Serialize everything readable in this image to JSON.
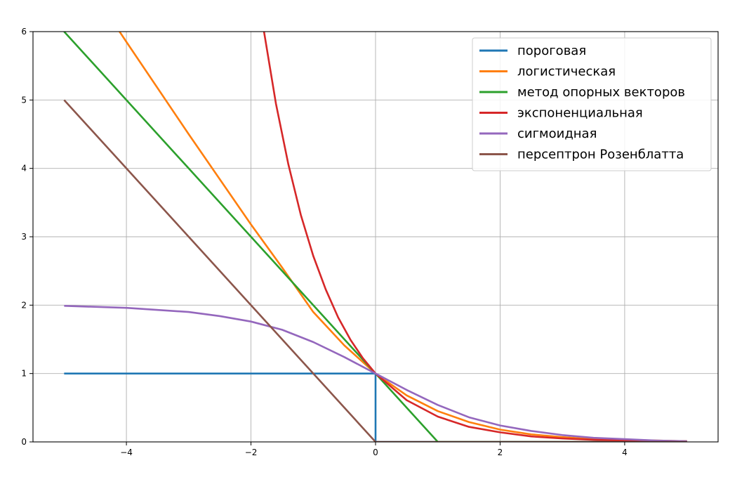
{
  "chart_data": {
    "type": "line",
    "title": "",
    "xlabel": "",
    "ylabel": "",
    "xlim": [
      -5.5,
      5.5
    ],
    "ylim": [
      0,
      6
    ],
    "grid": true,
    "legend_position": "top-right",
    "x_ticks": [
      -4,
      -2,
      0,
      2,
      4
    ],
    "x_tick_labels": [
      "−4",
      "−2",
      "0",
      "2",
      "4"
    ],
    "y_ticks": [
      0,
      1,
      2,
      3,
      4,
      5,
      6
    ],
    "y_tick_labels": [
      "0",
      "1",
      "2",
      "3",
      "4",
      "5",
      "6"
    ],
    "series": [
      {
        "name": "пороговая",
        "color": "#1f77b4",
        "x": [
          -5,
          -4,
          -3,
          -2,
          -1,
          0,
          0,
          1,
          2,
          3,
          4,
          5
        ],
        "y": [
          1,
          1,
          1,
          1,
          1,
          1,
          0,
          0,
          0,
          0,
          0,
          0
        ]
      },
      {
        "name": "логистическая",
        "color": "#ff7f0e",
        "x": [
          -5,
          -4,
          -3,
          -2.5,
          -2,
          -1.5,
          -1,
          -0.5,
          0,
          0.5,
          1,
          1.5,
          2,
          2.5,
          3,
          3.5,
          4,
          4.5,
          5
        ],
        "y": [
          7.21,
          5.85,
          4.5,
          3.84,
          3.18,
          2.55,
          1.9,
          1.41,
          1.0,
          0.68,
          0.45,
          0.29,
          0.18,
          0.11,
          0.07,
          0.04,
          0.03,
          0.02,
          0.01
        ]
      },
      {
        "name": "метод опорных векторов",
        "color": "#2ca02c",
        "x": [
          -5,
          -4,
          -3,
          -2,
          -1,
          0,
          1,
          2,
          3,
          4,
          5
        ],
        "y": [
          6,
          5,
          4,
          3,
          2,
          1,
          0,
          0,
          0,
          0,
          0
        ]
      },
      {
        "name": "экспоненциальная",
        "color": "#d62728",
        "x": [
          -2,
          -1.8,
          -1.6,
          -1.4,
          -1.2,
          -1,
          -0.8,
          -0.6,
          -0.4,
          -0.2,
          0,
          0.5,
          1,
          1.5,
          2,
          2.5,
          3,
          3.5,
          4,
          4.5,
          5
        ],
        "y": [
          7.39,
          6.05,
          4.95,
          4.06,
          3.32,
          2.72,
          2.23,
          1.82,
          1.49,
          1.22,
          1.0,
          0.61,
          0.37,
          0.22,
          0.14,
          0.08,
          0.05,
          0.03,
          0.02,
          0.01,
          0.01
        ]
      },
      {
        "name": "сигмоидная",
        "color": "#9467bd",
        "x": [
          -5,
          -4,
          -3,
          -2.5,
          -2,
          -1.5,
          -1,
          -0.5,
          0,
          0.5,
          1,
          1.5,
          2,
          2.5,
          3,
          3.5,
          4,
          4.5,
          5
        ],
        "y": [
          1.99,
          1.96,
          1.9,
          1.84,
          1.76,
          1.64,
          1.46,
          1.24,
          1.0,
          0.76,
          0.54,
          0.36,
          0.24,
          0.16,
          0.1,
          0.06,
          0.04,
          0.02,
          0.01
        ]
      },
      {
        "name": "персептрон Розенблатта",
        "color": "#8c564b",
        "x": [
          -5,
          -4,
          -3,
          -2,
          -1,
          0,
          1,
          2,
          3,
          4,
          5
        ],
        "y": [
          5,
          4,
          3,
          2,
          1,
          0,
          0,
          0,
          0,
          0,
          0
        ]
      }
    ]
  }
}
